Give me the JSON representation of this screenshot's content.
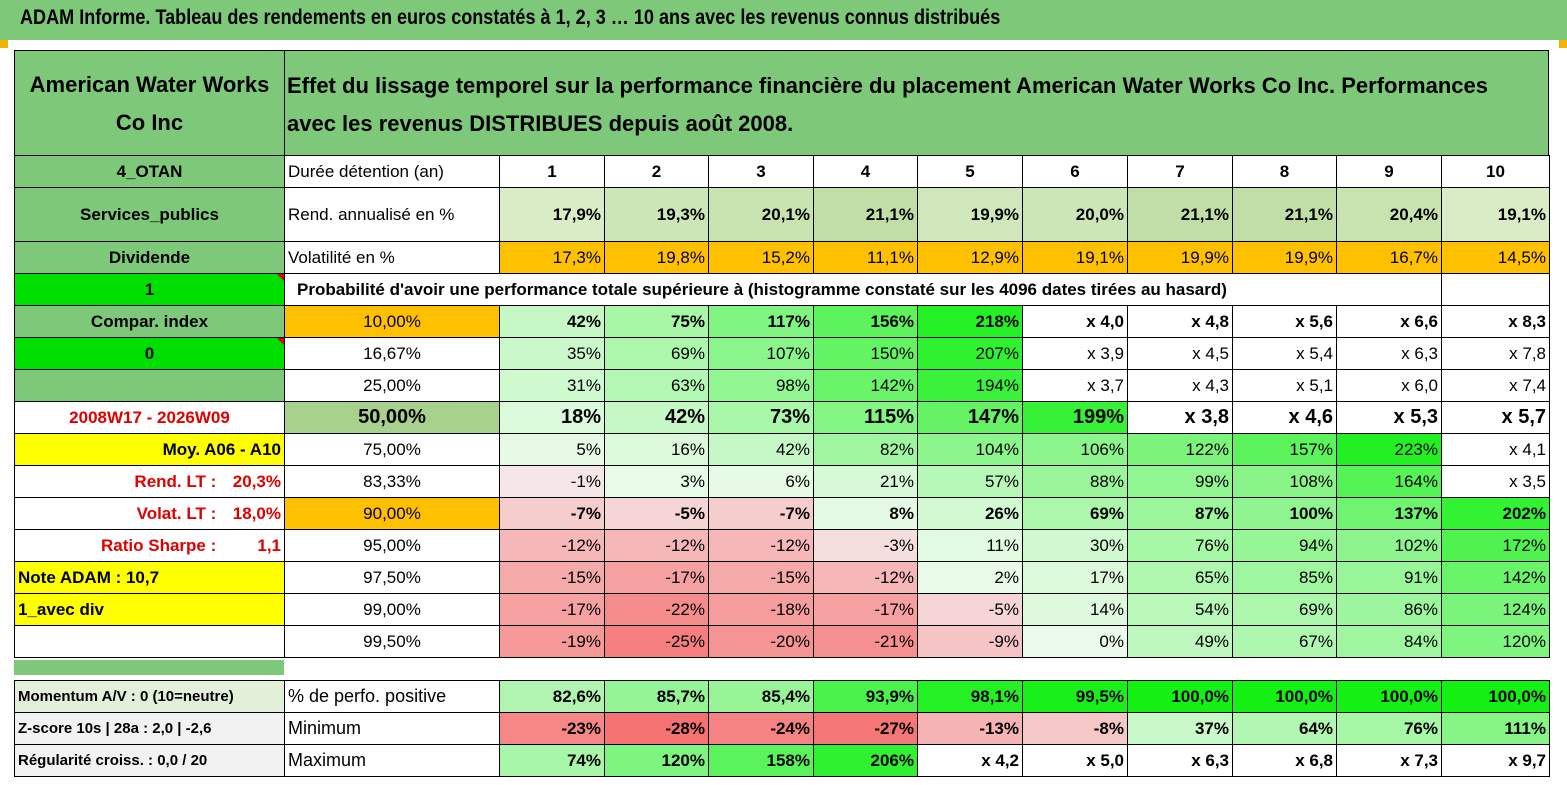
{
  "title": "ADAM Informe. Tableau des rendements en euros constatés à 1, 2, 3 … 10 ans avec les revenus connus distribués",
  "header": {
    "name": "American Water Works Co Inc",
    "description": "Effet du lissage temporel sur la performance financière du placement American Water Works Co Inc. Performances avec les revenus DISTRIBUES depuis août 2008."
  },
  "rows": {
    "duree": {
      "left": "4_OTAN",
      "label": "Durée détention (an)",
      "values": [
        "1",
        "2",
        "3",
        "4",
        "5",
        "6",
        "7",
        "8",
        "9",
        "10"
      ]
    },
    "rend": {
      "left": "Services_publics",
      "label": "Rend. annualisé en %",
      "values": [
        "17,9%",
        "19,3%",
        "20,1%",
        "21,1%",
        "19,9%",
        "20,0%",
        "21,1%",
        "21,1%",
        "20,4%",
        "19,1%"
      ]
    },
    "vol": {
      "left": "Dividende",
      "label": "Volatilité en %",
      "values": [
        "17,3%",
        "19,8%",
        "15,2%",
        "11,1%",
        "12,9%",
        "19,1%",
        "19,9%",
        "19,9%",
        "16,7%",
        "14,5%"
      ]
    },
    "prob_header": {
      "left": "1",
      "label": "Probabilité d'avoir une performance totale supérieure à (histogramme constaté sur les 4096 dates tirées au hasard)"
    }
  },
  "prob_rows": [
    {
      "left": "Compar. index",
      "pct": "10,00%",
      "values": [
        "42%",
        "75%",
        "117%",
        "156%",
        "218%",
        "x 4,0",
        "x 4,8",
        "x 5,6",
        "x 6,6",
        "x 8,3"
      ]
    },
    {
      "left": "0",
      "pct": "16,67%",
      "values": [
        "35%",
        "69%",
        "107%",
        "150%",
        "207%",
        "x 3,9",
        "x 4,5",
        "x 5,4",
        "x 6,3",
        "x 7,8"
      ]
    },
    {
      "left": "",
      "pct": "25,00%",
      "values": [
        "31%",
        "63%",
        "98%",
        "142%",
        "194%",
        "x 3,7",
        "x 4,3",
        "x 5,1",
        "x 6,0",
        "x 7,4"
      ]
    },
    {
      "left": "2008W17 - 2026W09",
      "pct": "50,00%",
      "values": [
        "18%",
        "42%",
        "73%",
        "115%",
        "147%",
        "199%",
        "x 3,8",
        "x 4,6",
        "x 5,3",
        "x 5,7"
      ]
    },
    {
      "left": "Moy. A06 - A10",
      "pct": "75,00%",
      "values": [
        "5%",
        "16%",
        "42%",
        "82%",
        "104%",
        "106%",
        "122%",
        "157%",
        "223%",
        "x 4,1"
      ]
    },
    {
      "left_label": "Rend. LT :",
      "left_value": "20,3%",
      "pct": "83,33%",
      "values": [
        "-1%",
        "3%",
        "6%",
        "21%",
        "57%",
        "88%",
        "99%",
        "108%",
        "164%",
        "x 3,5"
      ]
    },
    {
      "left_label": "Volat. LT :",
      "left_value": "18,0%",
      "pct": "90,00%",
      "values": [
        "-7%",
        "-5%",
        "-7%",
        "8%",
        "26%",
        "69%",
        "87%",
        "100%",
        "137%",
        "202%"
      ]
    },
    {
      "left_label": "Ratio Sharpe :",
      "left_value": "1,1",
      "pct": "95,00%",
      "values": [
        "-12%",
        "-12%",
        "-12%",
        "-3%",
        "11%",
        "30%",
        "76%",
        "94%",
        "102%",
        "172%"
      ]
    },
    {
      "left": "Note ADAM : 10,7",
      "pct": "97,50%",
      "values": [
        "-15%",
        "-17%",
        "-15%",
        "-12%",
        "2%",
        "17%",
        "65%",
        "85%",
        "91%",
        "142%"
      ]
    },
    {
      "left": "1_avec div",
      "pct": "99,00%",
      "values": [
        "-17%",
        "-22%",
        "-18%",
        "-17%",
        "-5%",
        "14%",
        "54%",
        "69%",
        "86%",
        "124%"
      ]
    },
    {
      "left": "",
      "pct": "99,50%",
      "values": [
        "-19%",
        "-25%",
        "-20%",
        "-21%",
        "-9%",
        "0%",
        "49%",
        "67%",
        "84%",
        "120%"
      ]
    }
  ],
  "bottom_rows": [
    {
      "left": "Momentum A/V : 0 (10=neutre)",
      "label": "% de perfo. positive",
      "values": [
        "82,6%",
        "85,7%",
        "85,4%",
        "93,9%",
        "98,1%",
        "99,5%",
        "100,0%",
        "100,0%",
        "100,0%",
        "100,0%"
      ]
    },
    {
      "left": "Z-score 10s | 28a : 2,0 | -2,6",
      "label": "Minimum",
      "values": [
        "-23%",
        "-28%",
        "-24%",
        "-27%",
        "-13%",
        "-8%",
        "37%",
        "64%",
        "76%",
        "111%"
      ]
    },
    {
      "left": "Régularité croiss. : 0,0 / 20",
      "label": "Maximum",
      "values": [
        "74%",
        "120%",
        "158%",
        "206%",
        "x 4,2",
        "x 5,0",
        "x 6,3",
        "x 6,8",
        "x 7,3",
        "x 9,7"
      ]
    }
  ],
  "colors": {
    "header_green": "#7ec87a",
    "bright_green": "#00e000",
    "yellow": "#ffff00",
    "orange": "#ffc000",
    "red_text": "#e00000"
  }
}
